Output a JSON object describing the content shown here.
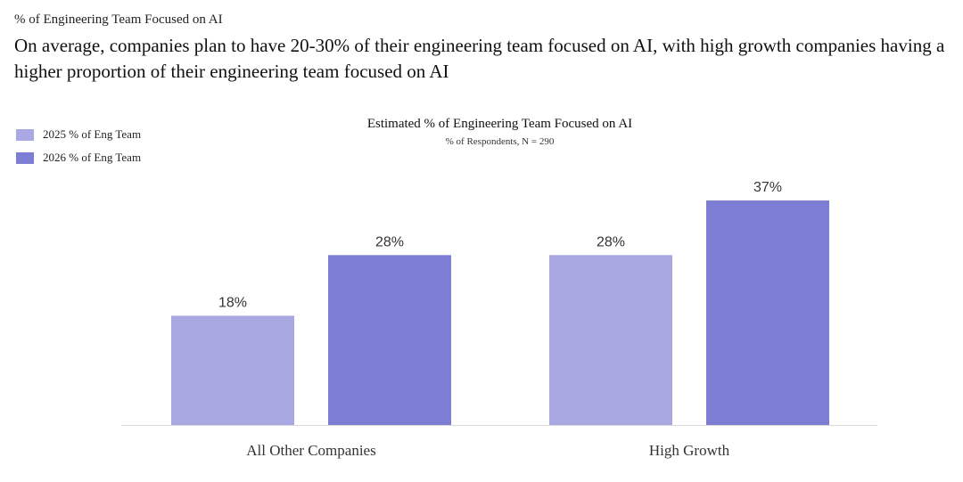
{
  "header": {
    "eyebrow": "% of Engineering Team Focused on AI",
    "headline": "On average, companies plan to have 20-30% of their engineering team focused on AI, with high growth companies having a higher proportion of their engineering team focused on AI"
  },
  "legend": {
    "items": [
      {
        "label": "2025 % of Eng Team",
        "color": "#a9a8e2"
      },
      {
        "label": "2026 % of Eng Team",
        "color": "#7d7dd3"
      }
    ]
  },
  "chart_data": {
    "type": "bar",
    "title": "Estimated % of Engineering Team Focused on AI",
    "subtitle": "% of Respondents, N = 290",
    "categories": [
      "All Other Companies",
      "High Growth"
    ],
    "series": [
      {
        "name": "2025 % of Eng Team",
        "values": [
          18,
          28
        ],
        "labels": [
          "18%",
          "28%"
        ],
        "color": "#a9a8e2"
      },
      {
        "name": "2026 % of Eng Team",
        "values": [
          28,
          37
        ],
        "labels": [
          "28%",
          "37%"
        ],
        "color": "#7d7dd3"
      }
    ],
    "ylim": [
      0,
      37
    ],
    "grid": false,
    "legend_position": "top-left"
  }
}
